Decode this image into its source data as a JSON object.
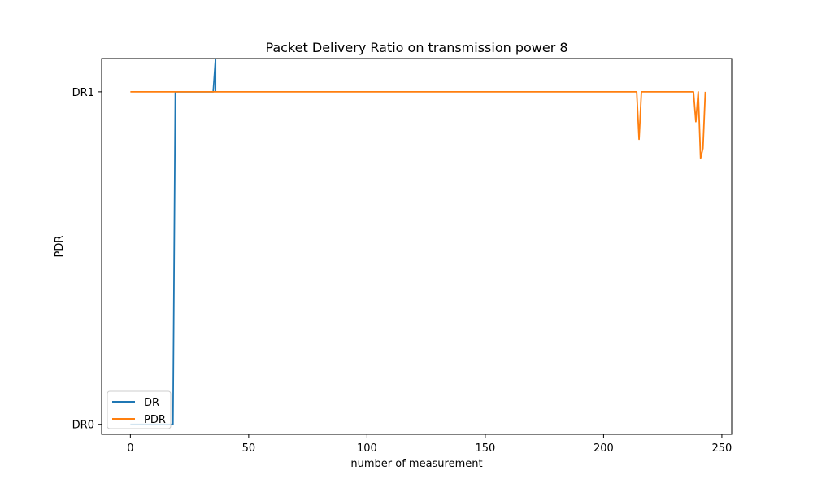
{
  "chart_data": {
    "type": "line",
    "title": "Packet Delivery Ratio on transmission power 8",
    "xlabel": "number of measurement",
    "ylabel": "PDR",
    "xlim": [
      -12.15,
      254.15
    ],
    "ylim": [
      -0.03,
      1.1
    ],
    "x_ticks": [
      0,
      50,
      100,
      150,
      200,
      250
    ],
    "y_ticks": [
      {
        "value": 0,
        "label": "DR0"
      },
      {
        "value": 1,
        "label": "DR1"
      }
    ],
    "grid": false,
    "legend_position": "lower-left",
    "series": [
      {
        "name": "DR",
        "color": "#1f77b4",
        "points": [
          [
            0,
            0
          ],
          [
            18,
            0
          ],
          [
            19,
            1
          ],
          [
            35,
            1
          ],
          [
            36,
            1.1
          ],
          [
            36,
            1
          ]
        ]
      },
      {
        "name": "PDR",
        "color": "#ff7f0e",
        "points": [
          [
            0,
            1
          ],
          [
            214,
            1
          ],
          [
            215,
            0.857
          ],
          [
            216,
            1
          ],
          [
            238,
            1
          ],
          [
            239,
            0.91
          ],
          [
            240,
            1
          ],
          [
            241,
            0.8
          ],
          [
            242,
            0.83
          ],
          [
            243,
            1
          ]
        ]
      }
    ]
  }
}
